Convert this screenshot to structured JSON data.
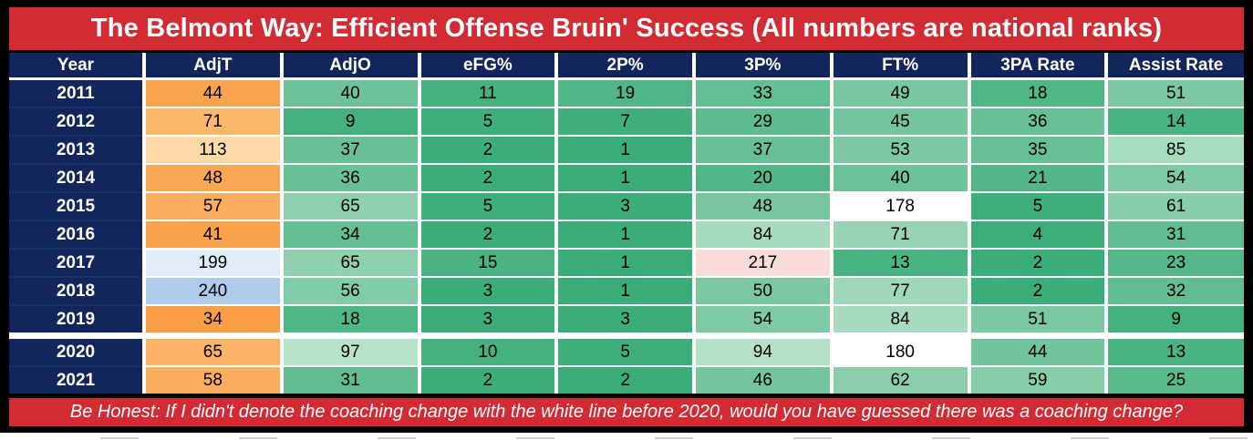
{
  "colors": {
    "accent_red": "#D22B34",
    "navy": "#12265B",
    "frame_black": "#000000",
    "divider_white": "#FFFFFF"
  },
  "chart_data": {
    "type": "table",
    "title": "The Belmont Way: Efficient Offense Bruin' Success (All numbers are national ranks)",
    "note": "Be Honest: If I didn't denote the coaching change with the white line before 2020, would you have guessed there was a coaching change?",
    "columns": [
      "Year",
      "AdjT",
      "AdjO",
      "eFG%",
      "2P%",
      "3P%",
      "FT%",
      "3PA Rate",
      "Assist Rate"
    ],
    "coaching_change_divider_before_year": 2020,
    "rows": [
      {
        "year": "2011",
        "divider_before": false,
        "values": [
          44,
          40,
          11,
          19,
          33,
          49,
          18,
          51
        ],
        "cell_colors": [
          "#F8A44E",
          "#6DC299",
          "#46B280",
          "#51B687",
          "#63BE93",
          "#79C7A1",
          "#4FB686",
          "#7BC8A3"
        ]
      },
      {
        "year": "2012",
        "divider_before": false,
        "values": [
          71,
          9,
          5,
          7,
          29,
          45,
          36,
          14
        ],
        "cell_colors": [
          "#FBB86D",
          "#44B17E",
          "#3EAE7B",
          "#41AF7C",
          "#5EBC90",
          "#73C59D",
          "#67C096",
          "#4AB382"
        ]
      },
      {
        "year": "2013",
        "divider_before": false,
        "values": [
          113,
          37,
          2,
          1,
          37,
          53,
          35,
          85
        ],
        "cell_colors": [
          "#FDD9A7",
          "#69C097",
          "#3AAD78",
          "#39AC77",
          "#69C097",
          "#7EC9A5",
          "#66BF95",
          "#A8DCC0"
        ]
      },
      {
        "year": "2014",
        "divider_before": false,
        "values": [
          48,
          36,
          2,
          1,
          20,
          40,
          21,
          54
        ],
        "cell_colors": [
          "#F9A753",
          "#67C096",
          "#3AAD78",
          "#39AC77",
          "#52B788",
          "#6DC299",
          "#53B789",
          "#7FCAA5"
        ]
      },
      {
        "year": "2015",
        "divider_before": false,
        "values": [
          57,
          65,
          5,
          3,
          48,
          178,
          5,
          61
        ],
        "cell_colors": [
          "#FAAE5E",
          "#8ED0AF",
          "#3EAE7B",
          "#3CAD79",
          "#77C6A0",
          "#FFFFFF",
          "#3EAE7B",
          "#88CEAC"
        ]
      },
      {
        "year": "2016",
        "divider_before": false,
        "values": [
          41,
          34,
          2,
          1,
          84,
          71,
          4,
          31
        ],
        "cell_colors": [
          "#F8A24B",
          "#65BF94",
          "#3AAD78",
          "#39AC77",
          "#A7DBBF",
          "#96D4B4",
          "#3DAE7A",
          "#61BD91"
        ]
      },
      {
        "year": "2017",
        "divider_before": false,
        "values": [
          199,
          65,
          15,
          1,
          217,
          13,
          2,
          23
        ],
        "cell_colors": [
          "#E2ECF8",
          "#8ED0AF",
          "#4CB483",
          "#39AC77",
          "#F8DCD8",
          "#49B382",
          "#3AAD78",
          "#56B88A"
        ]
      },
      {
        "year": "2018",
        "divider_before": false,
        "values": [
          240,
          56,
          3,
          1,
          50,
          77,
          2,
          32
        ],
        "cell_colors": [
          "#AECBEB",
          "#82CBA8",
          "#3CAD79",
          "#39AC77",
          "#7AC7A2",
          "#9ED7B9",
          "#3AAD78",
          "#62BE92"
        ]
      },
      {
        "year": "2019",
        "divider_before": false,
        "values": [
          34,
          18,
          3,
          3,
          54,
          84,
          51,
          9
        ],
        "cell_colors": [
          "#F89E44",
          "#4FB686",
          "#3CAD79",
          "#3CAD79",
          "#7FCAA5",
          "#A7DBBF",
          "#7BC8A3",
          "#44B17E"
        ]
      },
      {
        "year": "2020",
        "divider_before": true,
        "values": [
          65,
          97,
          10,
          5,
          94,
          180,
          44,
          13
        ],
        "cell_colors": [
          "#FBB467",
          "#B8E3CA",
          "#45B17F",
          "#3EAE7B",
          "#B4E1C8",
          "#FFFFFF",
          "#72C49D",
          "#49B382"
        ]
      },
      {
        "year": "2021",
        "divider_before": false,
        "values": [
          58,
          31,
          2,
          2,
          46,
          62,
          59,
          25
        ],
        "cell_colors": [
          "#FAAF5F",
          "#61BD91",
          "#3AAD78",
          "#3AAD78",
          "#75C59E",
          "#8ACEAC",
          "#86CDAA",
          "#59BA8C"
        ]
      }
    ]
  }
}
